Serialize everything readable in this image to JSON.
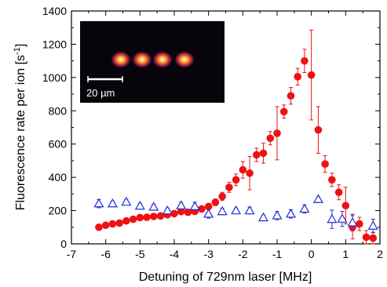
{
  "chart_data": {
    "type": "scatter",
    "title": "",
    "xlabel": "Detuning of 729nm laser  [MHz]",
    "ylabel": "Fluorescence rate per ion  [s",
    "ylabel_sup": "-1",
    "ylabel_close": "]",
    "xlim": [
      -7,
      2
    ],
    "ylim": [
      0,
      1400
    ],
    "xticks": [
      "-7",
      "-6",
      "-5",
      "-4",
      "-3",
      "-2",
      "-1",
      "0",
      "1",
      "2"
    ],
    "yticks": [
      "0",
      "200",
      "400",
      "600",
      "800",
      "1000",
      "1200",
      "1400"
    ],
    "inset": {
      "scalebar_label": "20 µm",
      "ions": 4
    },
    "colors": {
      "filled": "#ee1111",
      "open": "#1f2fd6",
      "inset_bg": "#08040c"
    },
    "series": [
      {
        "marker": "filled-circle",
        "points": [
          [
            -6.2,
            100,
            15
          ],
          [
            -6.0,
            112,
            15
          ],
          [
            -5.8,
            120,
            12
          ],
          [
            -5.6,
            125,
            12
          ],
          [
            -5.4,
            138,
            12
          ],
          [
            -5.2,
            148,
            12
          ],
          [
            -5.0,
            158,
            12
          ],
          [
            -4.8,
            160,
            12
          ],
          [
            -4.6,
            165,
            12
          ],
          [
            -4.4,
            168,
            12
          ],
          [
            -4.2,
            175,
            12
          ],
          [
            -4.0,
            182,
            12
          ],
          [
            -3.8,
            195,
            20
          ],
          [
            -3.6,
            190,
            15
          ],
          [
            -3.4,
            195,
            15
          ],
          [
            -3.2,
            210,
            15
          ],
          [
            -3.0,
            225,
            15
          ],
          [
            -2.8,
            250,
            20
          ],
          [
            -2.6,
            285,
            25
          ],
          [
            -2.4,
            340,
            30
          ],
          [
            -2.2,
            385,
            35
          ],
          [
            -2.0,
            445,
            50
          ],
          [
            -1.8,
            425,
            100
          ],
          [
            -1.6,
            535,
            40
          ],
          [
            -1.4,
            545,
            60
          ],
          [
            -1.2,
            635,
            40
          ],
          [
            -1.0,
            665,
            160
          ],
          [
            -0.8,
            795,
            40
          ],
          [
            -0.6,
            890,
            50
          ],
          [
            -0.4,
            1005,
            50
          ],
          [
            -0.2,
            1100,
            70
          ],
          [
            0.0,
            1015,
            270
          ],
          [
            0.2,
            685,
            140
          ],
          [
            0.4,
            480,
            50
          ],
          [
            0.6,
            385,
            40
          ],
          [
            0.8,
            310,
            45
          ],
          [
            1.0,
            230,
            110
          ],
          [
            1.2,
            100,
            70
          ],
          [
            1.4,
            120,
            40
          ],
          [
            1.6,
            40,
            40
          ],
          [
            1.8,
            35,
            35
          ]
        ]
      },
      {
        "marker": "open-triangle",
        "points": [
          [
            -6.2,
            242,
            25
          ],
          [
            -5.8,
            242,
            15
          ],
          [
            -5.4,
            252,
            15
          ],
          [
            -5.0,
            228,
            15
          ],
          [
            -4.6,
            222,
            15
          ],
          [
            -4.2,
            200,
            15
          ],
          [
            -3.8,
            230,
            20
          ],
          [
            -3.4,
            225,
            25
          ],
          [
            -3.0,
            180,
            25
          ],
          [
            -2.6,
            195,
            20
          ],
          [
            -2.2,
            200,
            15
          ],
          [
            -1.8,
            200,
            20
          ],
          [
            -1.4,
            158,
            15
          ],
          [
            -1.0,
            170,
            25
          ],
          [
            -0.6,
            180,
            25
          ],
          [
            -0.2,
            210,
            25
          ],
          [
            0.2,
            268,
            15
          ],
          [
            0.6,
            148,
            55
          ],
          [
            0.9,
            150,
            45
          ],
          [
            1.2,
            128,
            50
          ],
          [
            1.8,
            108,
            40
          ]
        ]
      }
    ]
  }
}
